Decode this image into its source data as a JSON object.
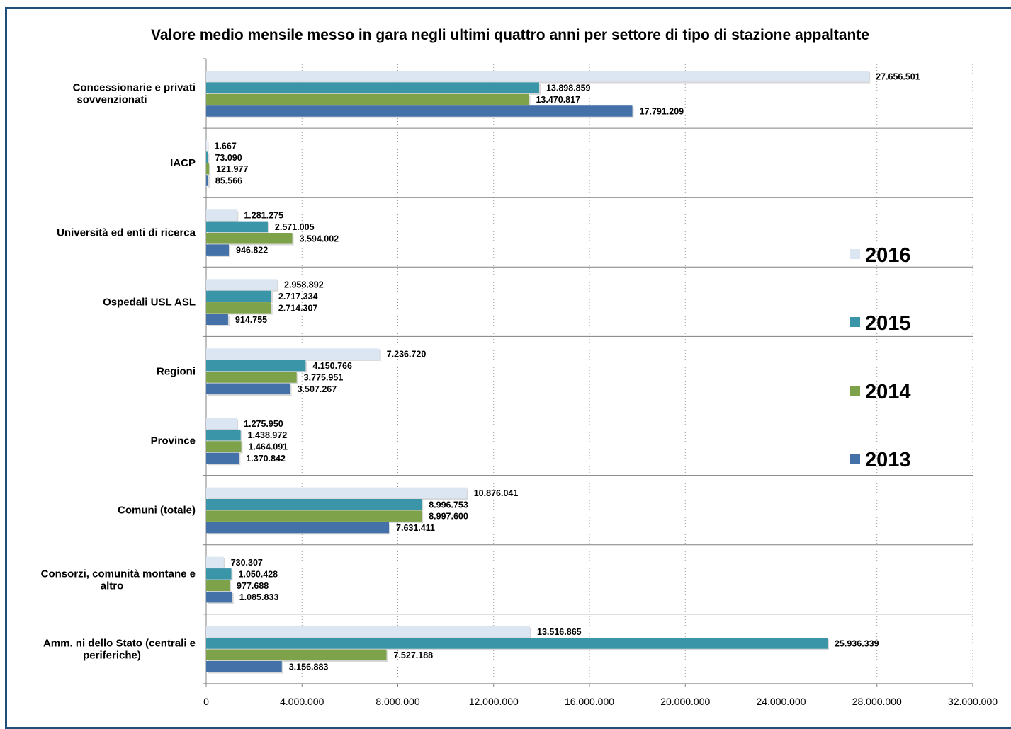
{
  "chart_data": {
    "type": "bar",
    "orientation": "horizontal",
    "title": "Valore medio mensile messo in gara negli ultimi quattro anni per settore di tipo di stazione appaltante",
    "categories": [
      "Concessionarie e privati sovvenzionati",
      "IACP",
      "Università ed enti di ricerca",
      "Ospedali USL ASL",
      "Regioni",
      "Province",
      "Comuni (totale)",
      "Consorzi, comunità montane e altro",
      "Amm. ni dello Stato (centrali e periferiche)"
    ],
    "category_lines": [
      [
        "Concessionarie e privati",
        "sovvenzionati"
      ],
      [
        "IACP"
      ],
      [
        "Università ed enti di ricerca"
      ],
      [
        "Ospedali USL ASL"
      ],
      [
        "Regioni"
      ],
      [
        "Province"
      ],
      [
        "Comuni (totale)"
      ],
      [
        "Consorzi, comunità montane e",
        "altro"
      ],
      [
        "Amm. ni dello Stato (centrali e",
        "periferiche)"
      ]
    ],
    "series": [
      {
        "name": "2016",
        "color": "#dce6f2",
        "values": [
          27656501,
          1667,
          1281275,
          2958892,
          7236720,
          1275950,
          10876041,
          730307,
          13516865
        ],
        "labels": [
          "27.656.501",
          "1.667",
          "1.281.275",
          "2.958.892",
          "7.236.720",
          "1.275.950",
          "10.876.041",
          "730.307",
          "13.516.865"
        ]
      },
      {
        "name": "2015",
        "color": "#3a95a8",
        "values": [
          13898859,
          73090,
          2571005,
          2717334,
          4150766,
          1438972,
          8996753,
          1050428,
          25936339
        ],
        "labels": [
          "13.898.859",
          "73.090",
          "2.571.005",
          "2.717.334",
          "4.150.766",
          "1.438.972",
          "8.996.753",
          "1.050.428",
          "25.936.339"
        ]
      },
      {
        "name": "2014",
        "color": "#7ea24a",
        "values": [
          13470817,
          121977,
          3594002,
          2714307,
          3775951,
          1464091,
          8997600,
          977688,
          7527188
        ],
        "labels": [
          "13.470.817",
          "121.977",
          "3.594.002",
          "2.714.307",
          "3.775.951",
          "1.464.091",
          "8.997.600",
          "977.688",
          "7.527.188"
        ]
      },
      {
        "name": "2013",
        "color": "#4472a8",
        "values": [
          17791209,
          85566,
          946822,
          914755,
          3507267,
          1370842,
          7631411,
          1085833,
          3156883
        ],
        "labels": [
          "17.791.209",
          "85.566",
          "946.822",
          "914.755",
          "3.507.267",
          "1.370.842",
          "7.631.411",
          "1.085.833",
          "3.156.883"
        ]
      }
    ],
    "x_ticks": [
      0,
      4000000,
      8000000,
      12000000,
      16000000,
      20000000,
      24000000,
      28000000,
      32000000
    ],
    "x_tick_labels": [
      "0",
      "4.000.000",
      "8.000.000",
      "12.000.000",
      "16.000.000",
      "20.000.000",
      "24.000.000",
      "28.000.000",
      "32.000.000"
    ],
    "xlim": [
      0,
      32000000
    ],
    "grid": "vertical dotted",
    "legend_position": "right",
    "legend_order": [
      "2016",
      "2015",
      "2014",
      "2013"
    ],
    "colors": {
      "frame": "#1f4e79",
      "grid": "#999999",
      "axis": "#808080"
    }
  }
}
